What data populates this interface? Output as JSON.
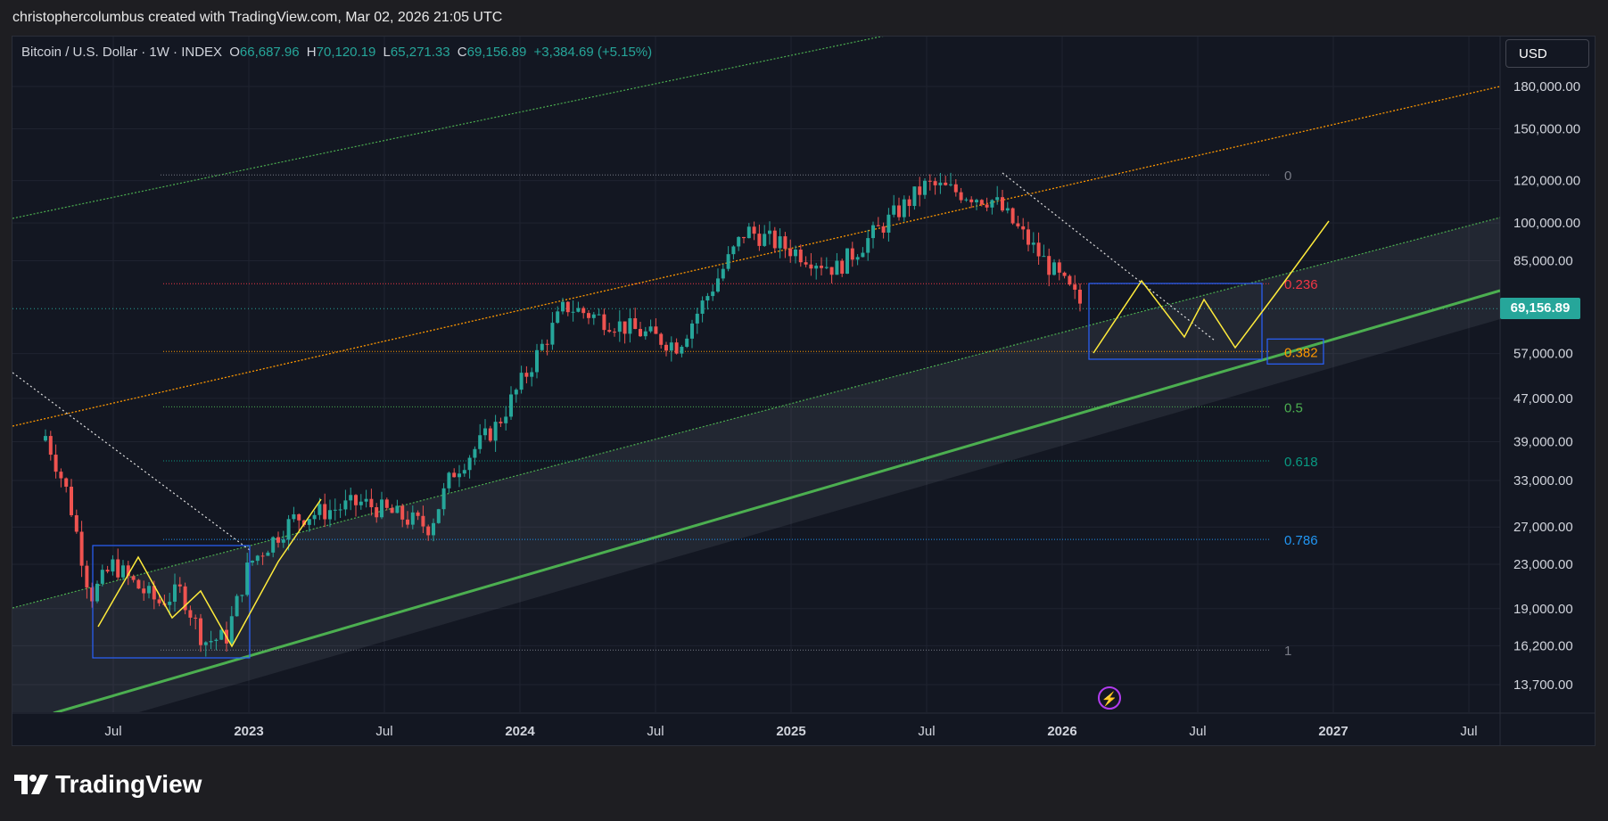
{
  "header": {
    "attribution": "christophercolumbus created with TradingView.com, Mar 02, 2026 21:05 UTC"
  },
  "symbol": {
    "name": "Bitcoin / U.S. Dollar · 1W · INDEX",
    "open_label": "O",
    "open": "66,687.96",
    "high_label": "H",
    "high": "70,120.19",
    "low_label": "L",
    "low": "65,271.33",
    "close_label": "C",
    "close": "69,156.89",
    "change": "+3,384.69 (+5.15%)"
  },
  "currency_button": "USD",
  "last_price": "69,156.89",
  "brand": {
    "name": "TradingView"
  },
  "colors": {
    "up": "#26a69a",
    "down": "#ef5350",
    "background": "#131722",
    "channel_line": "#4caf50",
    "orange_line": "#ff9800",
    "projection": "#ffeb3b"
  },
  "chart_data": {
    "type": "candlestick",
    "title": "Bitcoin / U.S. Dollar · 1W · INDEX",
    "y_scale": "log",
    "ylim": [
      12000,
      200000
    ],
    "y_ticks": [
      "180,000.00",
      "150,000.00",
      "120,000.00",
      "100,000.00",
      "85,000.00",
      "57,000.00",
      "47,000.00",
      "39,000.00",
      "33,000.00",
      "27,000.00",
      "23,000.00",
      "19,000.00",
      "16,200.00",
      "13,700.00"
    ],
    "x_ticks": [
      "Jul",
      "2023",
      "Jul",
      "2024",
      "Jul",
      "2025",
      "Jul",
      "2026",
      "Jul",
      "2027",
      "Jul"
    ],
    "fib_levels": [
      {
        "label": "0",
        "price": 123000,
        "color": "#787b86"
      },
      {
        "label": "0.236",
        "price": 77000,
        "color": "#f23645"
      },
      {
        "label": "0.382",
        "price": 57500,
        "color": "#ff9800"
      },
      {
        "label": "0.5",
        "price": 45300,
        "color": "#4caf50"
      },
      {
        "label": "0.618",
        "price": 35900,
        "color": "#089981"
      },
      {
        "label": "0.786",
        "price": 25600,
        "color": "#2196f3"
      },
      {
        "label": "1",
        "price": 15900,
        "color": "#787b86"
      }
    ],
    "weekly_closes": [
      {
        "date": "2022-04",
        "price": 40000
      },
      {
        "date": "2022-05",
        "price": 31000
      },
      {
        "date": "2022-06",
        "price": 20000
      },
      {
        "date": "2022-07",
        "price": 23000
      },
      {
        "date": "2022-08",
        "price": 21000
      },
      {
        "date": "2022-09",
        "price": 19500
      },
      {
        "date": "2022-10",
        "price": 20500
      },
      {
        "date": "2022-11",
        "price": 16500
      },
      {
        "date": "2022-12",
        "price": 16800
      },
      {
        "date": "2023-01",
        "price": 23000
      },
      {
        "date": "2023-03",
        "price": 28000
      },
      {
        "date": "2023-06",
        "price": 30000
      },
      {
        "date": "2023-09",
        "price": 27000
      },
      {
        "date": "2023-10",
        "price": 34000
      },
      {
        "date": "2023-12",
        "price": 42000
      },
      {
        "date": "2024-03",
        "price": 70000
      },
      {
        "date": "2024-08",
        "price": 59000
      },
      {
        "date": "2024-11",
        "price": 97000
      },
      {
        "date": "2025-03",
        "price": 82000
      },
      {
        "date": "2025-07",
        "price": 118000
      },
      {
        "date": "2025-10",
        "price": 110000
      },
      {
        "date": "2025-12",
        "price": 87000
      },
      {
        "date": "2026-02",
        "price": 69156.89
      }
    ]
  }
}
